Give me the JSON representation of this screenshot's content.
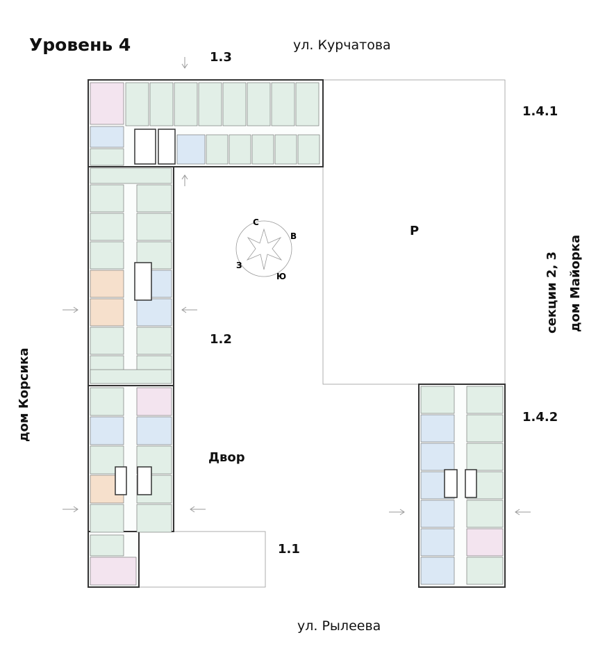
{
  "title": "Уровень 4",
  "streets": {
    "north": "ул. Курчатова",
    "south": "ул. Рылеева"
  },
  "neighbors": {
    "west": "дом Корсика",
    "east_line1": "секции 2, 3",
    "east_line2": "дом Майорка"
  },
  "sections": {
    "s13": "1.3",
    "s12": "1.2",
    "s11": "1.1",
    "s141": "1.4.1",
    "s142": "1.4.2"
  },
  "areas": {
    "parking": "P",
    "yard": "Двор"
  },
  "compass": {
    "n": "С",
    "e": "В",
    "s": "Ю",
    "w": "З"
  },
  "colors": {
    "green": "#e2efe7",
    "pink": "#f3e4ef",
    "blue": "#dbe8f5",
    "orange": "#f6e0cc",
    "wall": "#333333"
  }
}
